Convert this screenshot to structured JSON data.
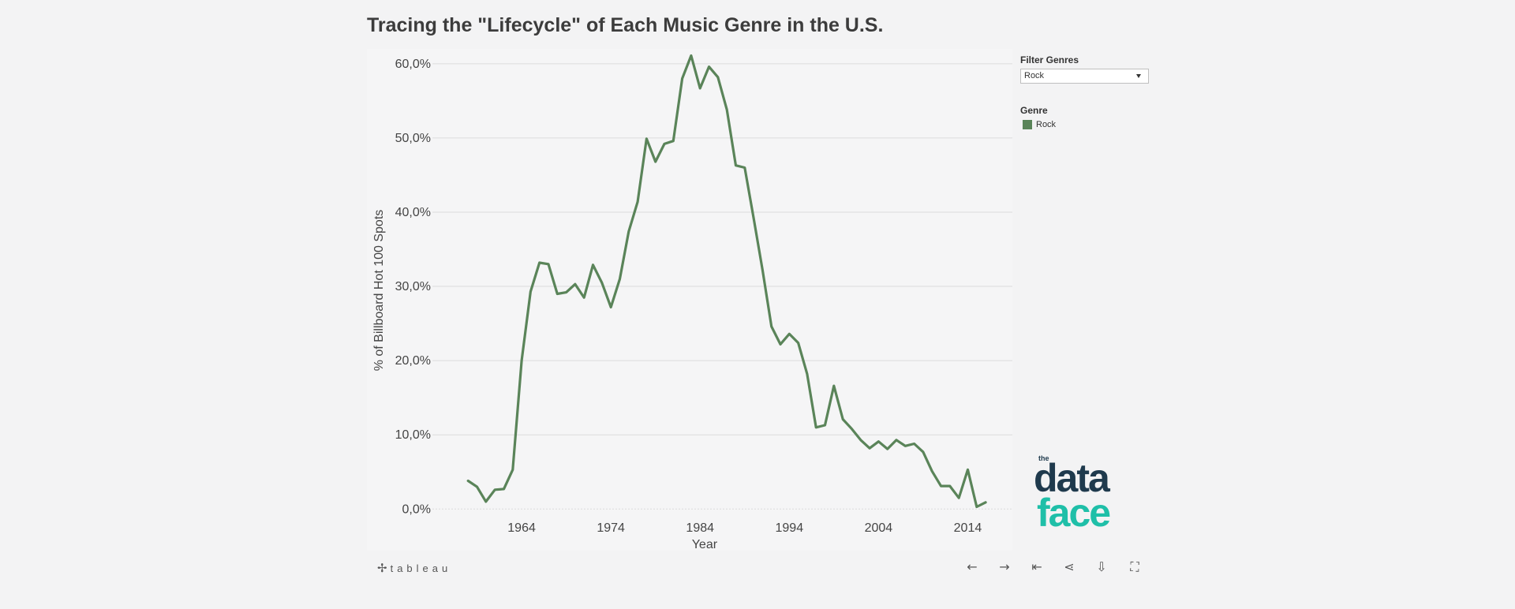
{
  "title": "Tracing the \"Lifecycle\" of Each Music Genre in the U.S.",
  "filter": {
    "label": "Filter Genres",
    "selected": "Rock"
  },
  "legend": {
    "title": "Genre",
    "items": [
      {
        "label": "Rock",
        "color": "#5a8459"
      }
    ]
  },
  "logo": {
    "small": "the",
    "line1": "data",
    "line2": "face"
  },
  "footer": {
    "brand": "tableau"
  },
  "toolbar": {
    "icons": [
      "undo-icon",
      "redo-icon",
      "revert-icon",
      "share-icon",
      "download-icon",
      "fullscreen-icon"
    ]
  },
  "chart_data": {
    "type": "line",
    "title": "Tracing the \"Lifecycle\" of Each Music Genre in the U.S.",
    "xlabel": "Year",
    "ylabel": "% of Billboard Hot 100 Spots",
    "xlim": [
      1954,
      2019
    ],
    "ylim": [
      -0.5,
      62
    ],
    "x_ticks": [
      1964,
      1974,
      1984,
      1994,
      2004,
      2014
    ],
    "y_ticks": [
      0,
      10,
      20,
      30,
      40,
      50,
      60
    ],
    "y_tick_labels": [
      "0,0%",
      "10,0%",
      "20,0%",
      "30,0%",
      "40,0%",
      "50,0%",
      "60,0%"
    ],
    "grid": "horizontal",
    "series": [
      {
        "name": "Rock",
        "color": "#5a8459",
        "x": [
          1958,
          1959,
          1960,
          1961,
          1962,
          1963,
          1964,
          1965,
          1966,
          1967,
          1968,
          1969,
          1970,
          1971,
          1972,
          1973,
          1974,
          1975,
          1976,
          1977,
          1978,
          1979,
          1980,
          1981,
          1982,
          1983,
          1984,
          1985,
          1986,
          1987,
          1988,
          1989,
          1990,
          1991,
          1992,
          1993,
          1994,
          1995,
          1996,
          1997,
          1998,
          1999,
          2000,
          2001,
          2002,
          2003,
          2004,
          2005,
          2006,
          2007,
          2008,
          2009,
          2010,
          2011,
          2012,
          2013,
          2014,
          2015,
          2016
        ],
        "values": [
          3.8,
          3.0,
          1.0,
          2.6,
          2.7,
          5.3,
          20.0,
          29.3,
          33.2,
          33.0,
          29.0,
          29.2,
          30.3,
          28.5,
          32.9,
          30.5,
          27.2,
          31.0,
          37.4,
          41.4,
          49.9,
          46.8,
          49.2,
          49.6,
          58.0,
          61.1,
          56.7,
          59.6,
          58.2,
          53.8,
          46.3,
          46.0,
          39.2,
          32.2,
          24.6,
          22.2,
          23.6,
          22.4,
          18.2,
          11.0,
          11.3,
          16.6,
          12.1,
          10.8,
          9.3,
          8.2,
          9.1,
          8.1,
          9.3,
          8.5,
          8.8,
          7.7,
          5.1,
          3.1,
          3.1,
          1.5,
          5.3,
          0.3,
          0.9
        ]
      }
    ]
  }
}
